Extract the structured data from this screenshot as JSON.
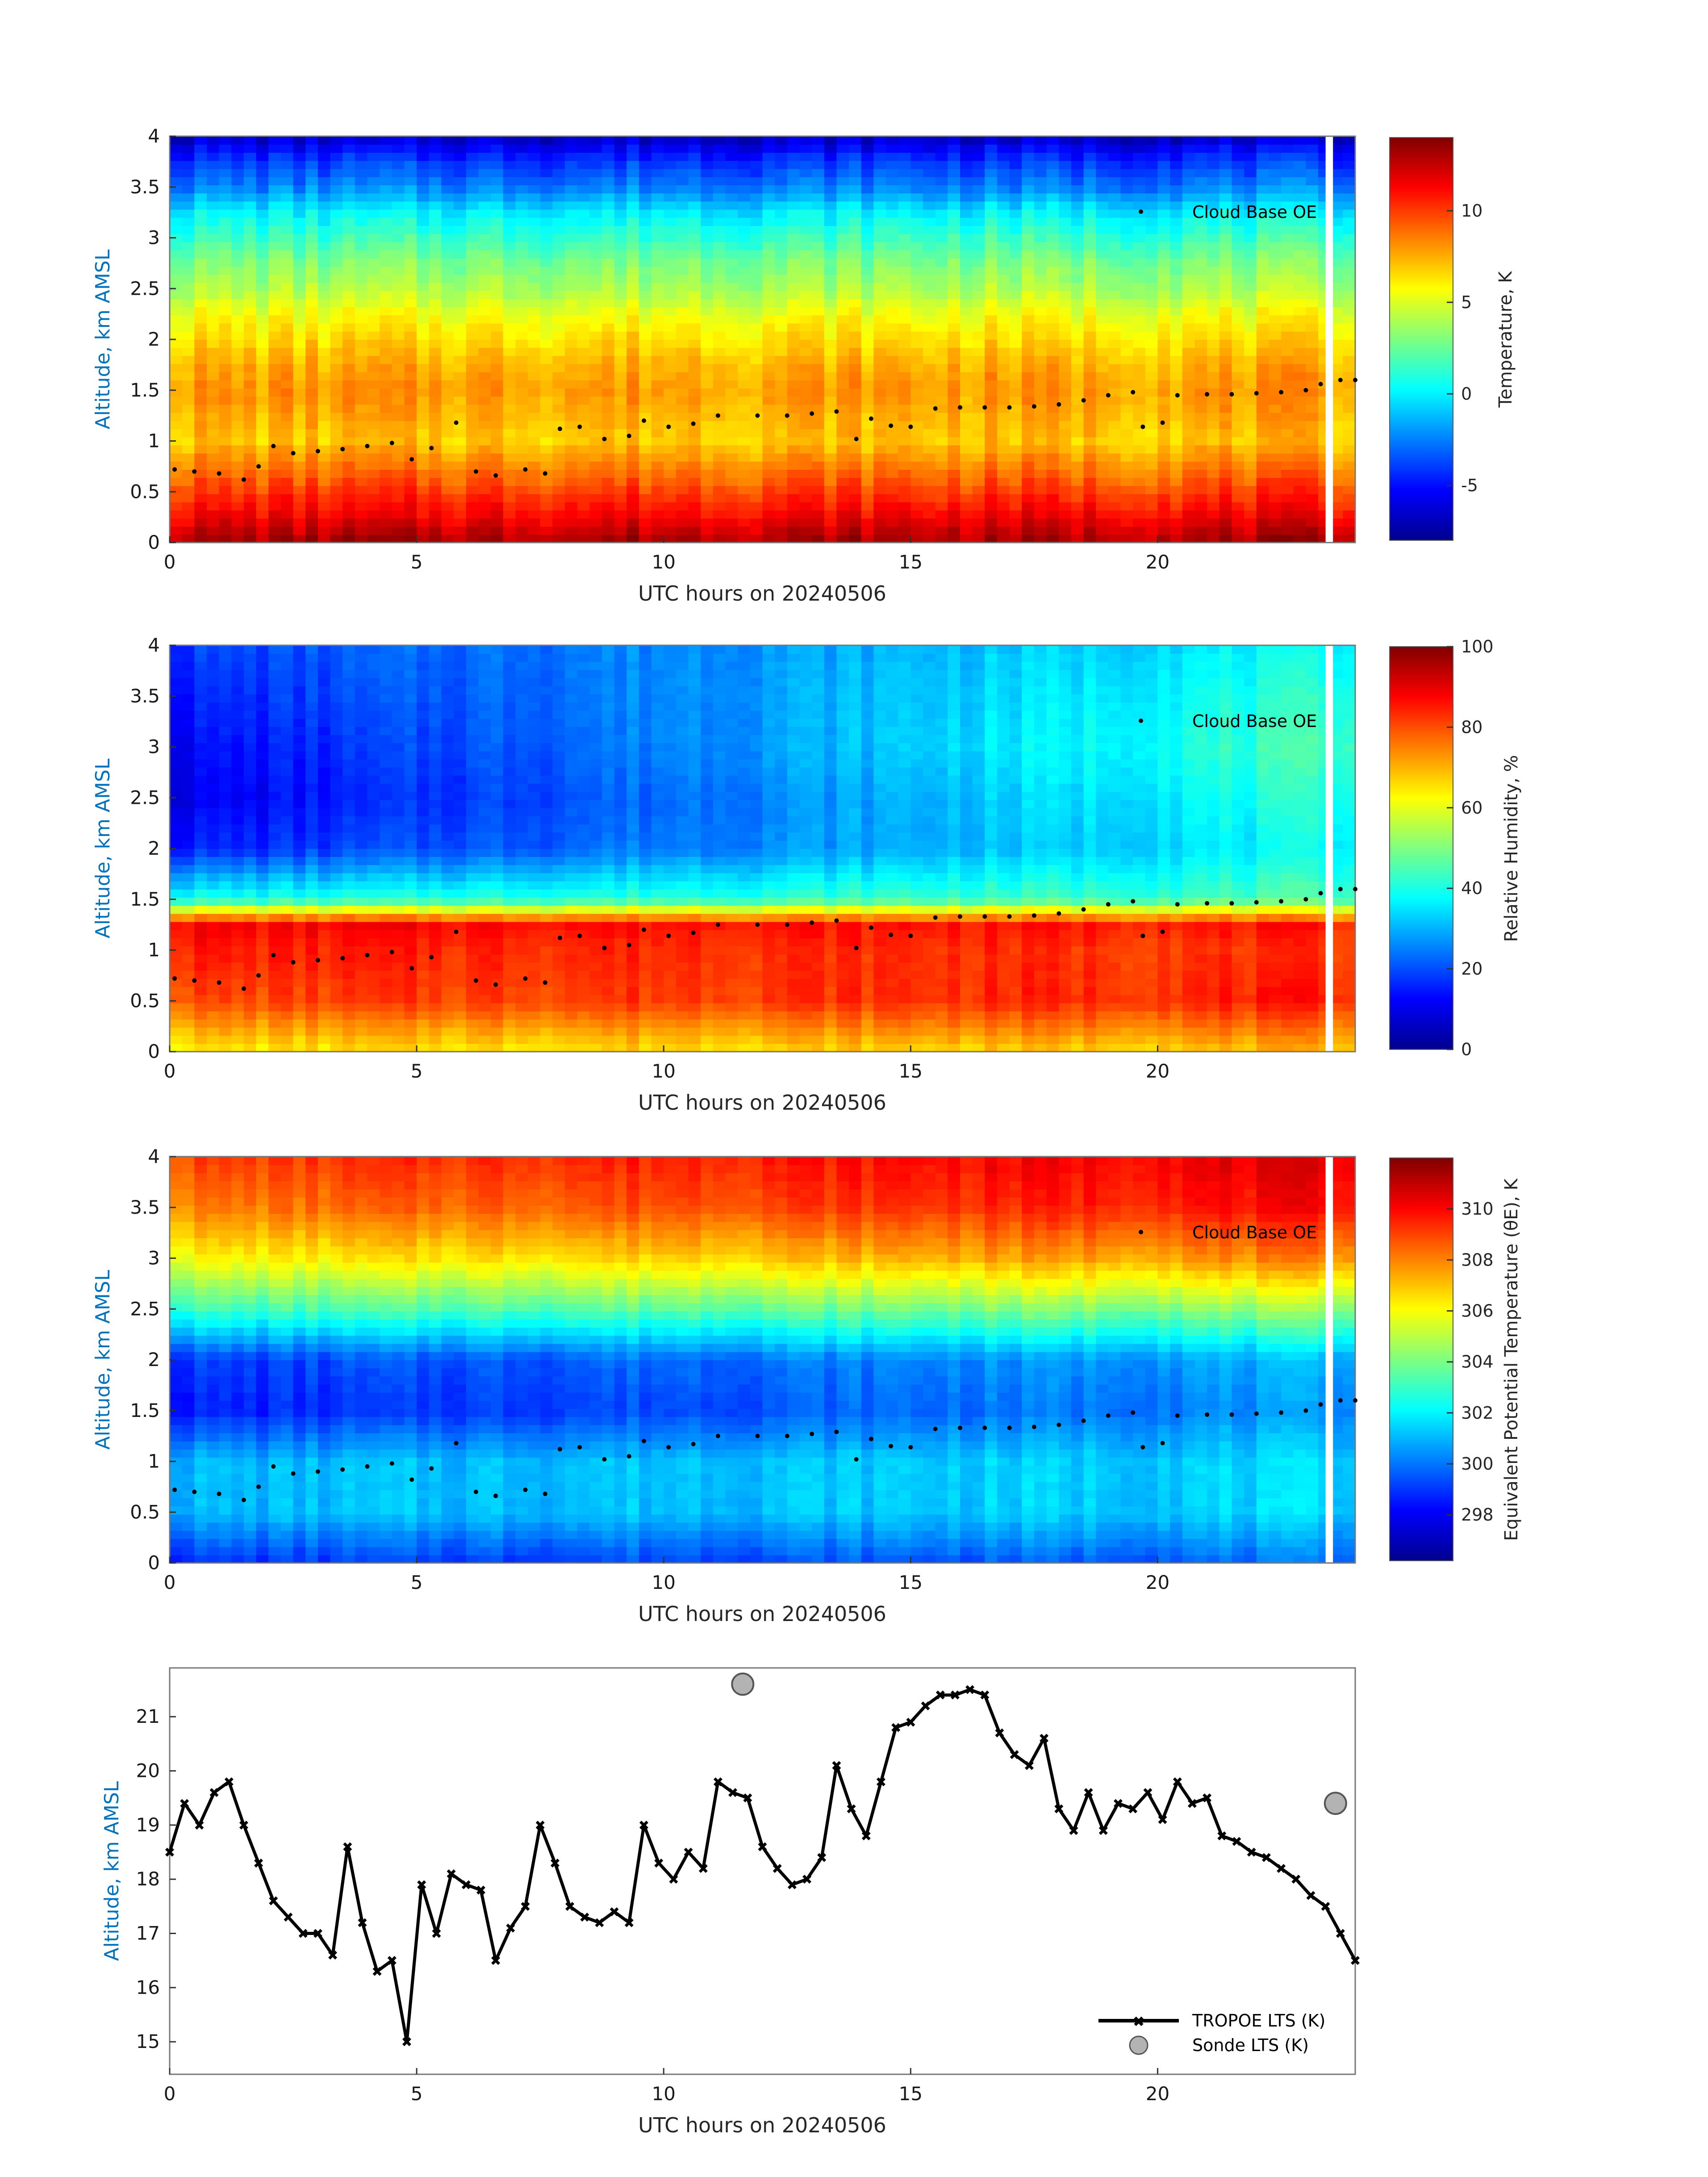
{
  "figure": {
    "xlabel": "UTC hours on 20240506",
    "ylabel": "Altitude, km AMSL",
    "xlim": [
      0,
      24
    ],
    "xticks": [
      0,
      5,
      10,
      15,
      20
    ]
  },
  "panels": [
    {
      "id": "temperature",
      "type": "heatmap",
      "colorbar_label": "Temperature, K",
      "clim": [
        -8,
        14
      ],
      "cbar_ticks": [
        -5,
        0,
        5,
        10
      ],
      "ylim": [
        0,
        4
      ],
      "yticks": [
        0,
        0.5,
        1,
        1.5,
        2,
        2.5,
        3,
        3.5,
        4
      ],
      "legend": "Cloud Base OE"
    },
    {
      "id": "relative-humidity",
      "type": "heatmap",
      "colorbar_label": "Relative Humidity, %",
      "clim": [
        0,
        100
      ],
      "cbar_ticks": [
        0,
        20,
        40,
        60,
        80,
        100
      ],
      "ylim": [
        0,
        4
      ],
      "yticks": [
        0,
        0.5,
        1,
        1.5,
        2,
        2.5,
        3,
        3.5,
        4
      ],
      "legend": "Cloud Base OE"
    },
    {
      "id": "theta-e",
      "type": "heatmap",
      "colorbar_label": "Equivalent Potential Temperature (θE), K",
      "clim": [
        296.2,
        312
      ],
      "cbar_ticks": [
        298,
        300,
        302,
        304,
        306,
        308,
        310
      ],
      "ylim": [
        0,
        4
      ],
      "yticks": [
        0,
        0.5,
        1,
        1.5,
        2,
        2.5,
        3,
        3.5,
        4
      ],
      "legend": "Cloud Base OE"
    }
  ],
  "line_panel": {
    "ylim": [
      14.4,
      21.9
    ],
    "yticks": [
      15,
      16,
      17,
      18,
      19,
      20,
      21
    ],
    "legend": [
      "TROPOE LTS (K)",
      "Sonde LTS (K)"
    ]
  },
  "chart_data": [
    {
      "type": "heatmap",
      "title": "Temperature",
      "x_range": [
        0,
        24
      ],
      "y_range": [
        0,
        4
      ],
      "z_unit": "K",
      "profile_altitude_km": [
        0.05,
        0.25,
        0.5,
        0.75,
        1.0,
        1.25,
        1.5,
        1.75,
        2.0,
        2.25,
        2.5,
        2.75,
        3.0,
        3.25,
        3.5,
        3.75,
        4.0
      ],
      "profile_values_typical": [
        13,
        11.5,
        10,
        8.5,
        7,
        7.5,
        8,
        7.5,
        6.5,
        5.5,
        4,
        3,
        1.5,
        0,
        -2.5,
        -4,
        -6.5
      ],
      "data_gap_hours": [
        23.4,
        23.55
      ]
    },
    {
      "type": "heatmap",
      "title": "Relative Humidity",
      "x_range": [
        0,
        24
      ],
      "y_range": [
        0,
        4
      ],
      "z_unit": "%",
      "profile_altitude_km": [
        0.05,
        0.5,
        1.0,
        1.25,
        1.5,
        2.0,
        2.5,
        3.0,
        3.5,
        4.0
      ],
      "profile_values_early": [
        65,
        80,
        85,
        88,
        40,
        15,
        10,
        12,
        15,
        18
      ],
      "profile_values_late": [
        70,
        85,
        82,
        85,
        45,
        38,
        42,
        45,
        42,
        38
      ],
      "data_gap_hours": [
        23.4,
        23.55
      ]
    },
    {
      "type": "heatmap",
      "title": "Equivalent Potential Temperature",
      "x_range": [
        0,
        24
      ],
      "y_range": [
        0,
        4
      ],
      "z_unit": "K",
      "profile_altitude_km": [
        0.05,
        0.5,
        1.0,
        1.5,
        2.0,
        2.5,
        3.0,
        3.5,
        4.0
      ],
      "profile_values_early": [
        299,
        301,
        301,
        298.5,
        299,
        303,
        306,
        308,
        309
      ],
      "profile_values_late": [
        300,
        301.5,
        301.5,
        300.5,
        301,
        304.5,
        308,
        310,
        310.5
      ],
      "data_gap_hours": [
        23.4,
        23.55
      ]
    },
    {
      "type": "scatter",
      "title": "Cloud Base OE",
      "x": [
        0.1,
        0.5,
        1.0,
        1.5,
        1.8,
        2.1,
        2.5,
        3.0,
        3.5,
        4.0,
        4.5,
        4.9,
        5.3,
        5.8,
        6.2,
        6.6,
        7.2,
        7.6,
        7.9,
        8.3,
        8.8,
        9.3,
        9.6,
        10.1,
        10.6,
        11.1,
        11.9,
        12.5,
        13.0,
        13.5,
        13.9,
        14.2,
        14.6,
        15.0,
        15.5,
        16.0,
        16.5,
        17.0,
        17.5,
        18.0,
        18.5,
        19.0,
        19.5,
        19.7,
        20.1,
        20.4,
        21.0,
        21.5,
        22.0,
        22.5,
        23.0,
        23.3,
        23.7,
        24.0
      ],
      "y": [
        0.72,
        0.7,
        0.68,
        0.62,
        0.75,
        0.95,
        0.88,
        0.9,
        0.92,
        0.95,
        0.98,
        0.82,
        0.93,
        1.18,
        0.7,
        0.66,
        0.72,
        0.68,
        1.12,
        1.14,
        1.02,
        1.05,
        1.2,
        1.14,
        1.17,
        1.25,
        1.25,
        1.25,
        1.27,
        1.29,
        1.02,
        1.22,
        1.15,
        1.14,
        1.32,
        1.33,
        1.33,
        1.33,
        1.34,
        1.36,
        1.4,
        1.45,
        1.48,
        1.14,
        1.18,
        1.45,
        1.46,
        1.46,
        1.47,
        1.48,
        1.5,
        1.56,
        1.6,
        1.6
      ]
    },
    {
      "type": "line",
      "title": "TROPOE LTS (K)",
      "x": [
        0.0,
        0.3,
        0.6,
        0.9,
        1.2,
        1.5,
        1.8,
        2.1,
        2.4,
        2.7,
        3.0,
        3.3,
        3.6,
        3.9,
        4.2,
        4.5,
        4.8,
        5.1,
        5.4,
        5.7,
        6.0,
        6.3,
        6.6,
        6.9,
        7.2,
        7.5,
        7.8,
        8.1,
        8.4,
        8.7,
        9.0,
        9.3,
        9.6,
        9.9,
        10.2,
        10.5,
        10.8,
        11.1,
        11.4,
        11.7,
        12.0,
        12.3,
        12.6,
        12.9,
        13.2,
        13.5,
        13.8,
        14.1,
        14.4,
        14.7,
        15.0,
        15.3,
        15.6,
        15.9,
        16.2,
        16.5,
        16.8,
        17.1,
        17.4,
        17.7,
        18.0,
        18.3,
        18.6,
        18.9,
        19.2,
        19.5,
        19.8,
        20.1,
        20.4,
        20.7,
        21.0,
        21.3,
        21.6,
        21.9,
        22.2,
        22.5,
        22.8,
        23.1,
        23.4,
        23.7,
        24.0
      ],
      "y": [
        18.5,
        19.4,
        19.0,
        19.6,
        19.8,
        19.0,
        18.3,
        17.6,
        17.3,
        17.0,
        17.0,
        16.6,
        18.6,
        17.2,
        16.3,
        16.5,
        15.0,
        17.9,
        17.0,
        18.1,
        17.9,
        17.8,
        16.5,
        17.1,
        17.5,
        19.0,
        18.3,
        17.5,
        17.3,
        17.2,
        17.4,
        17.2,
        19.0,
        18.3,
        18.0,
        18.5,
        18.2,
        19.8,
        19.6,
        19.5,
        18.6,
        18.2,
        17.9,
        18.0,
        18.4,
        20.1,
        19.3,
        18.8,
        19.8,
        20.8,
        20.9,
        21.2,
        21.4,
        21.4,
        21.5,
        21.4,
        20.7,
        20.3,
        20.1,
        20.6,
        19.3,
        18.9,
        19.6,
        18.9,
        19.4,
        19.3,
        19.6,
        19.1,
        19.8,
        19.4,
        19.5,
        18.8,
        18.7,
        18.5,
        18.4,
        18.2,
        18.0,
        17.7,
        17.5,
        17.0,
        16.5
      ]
    },
    {
      "type": "scatter",
      "title": "Sonde LTS (K)",
      "x": [
        11.6,
        23.6
      ],
      "y": [
        21.6,
        19.4
      ]
    }
  ]
}
